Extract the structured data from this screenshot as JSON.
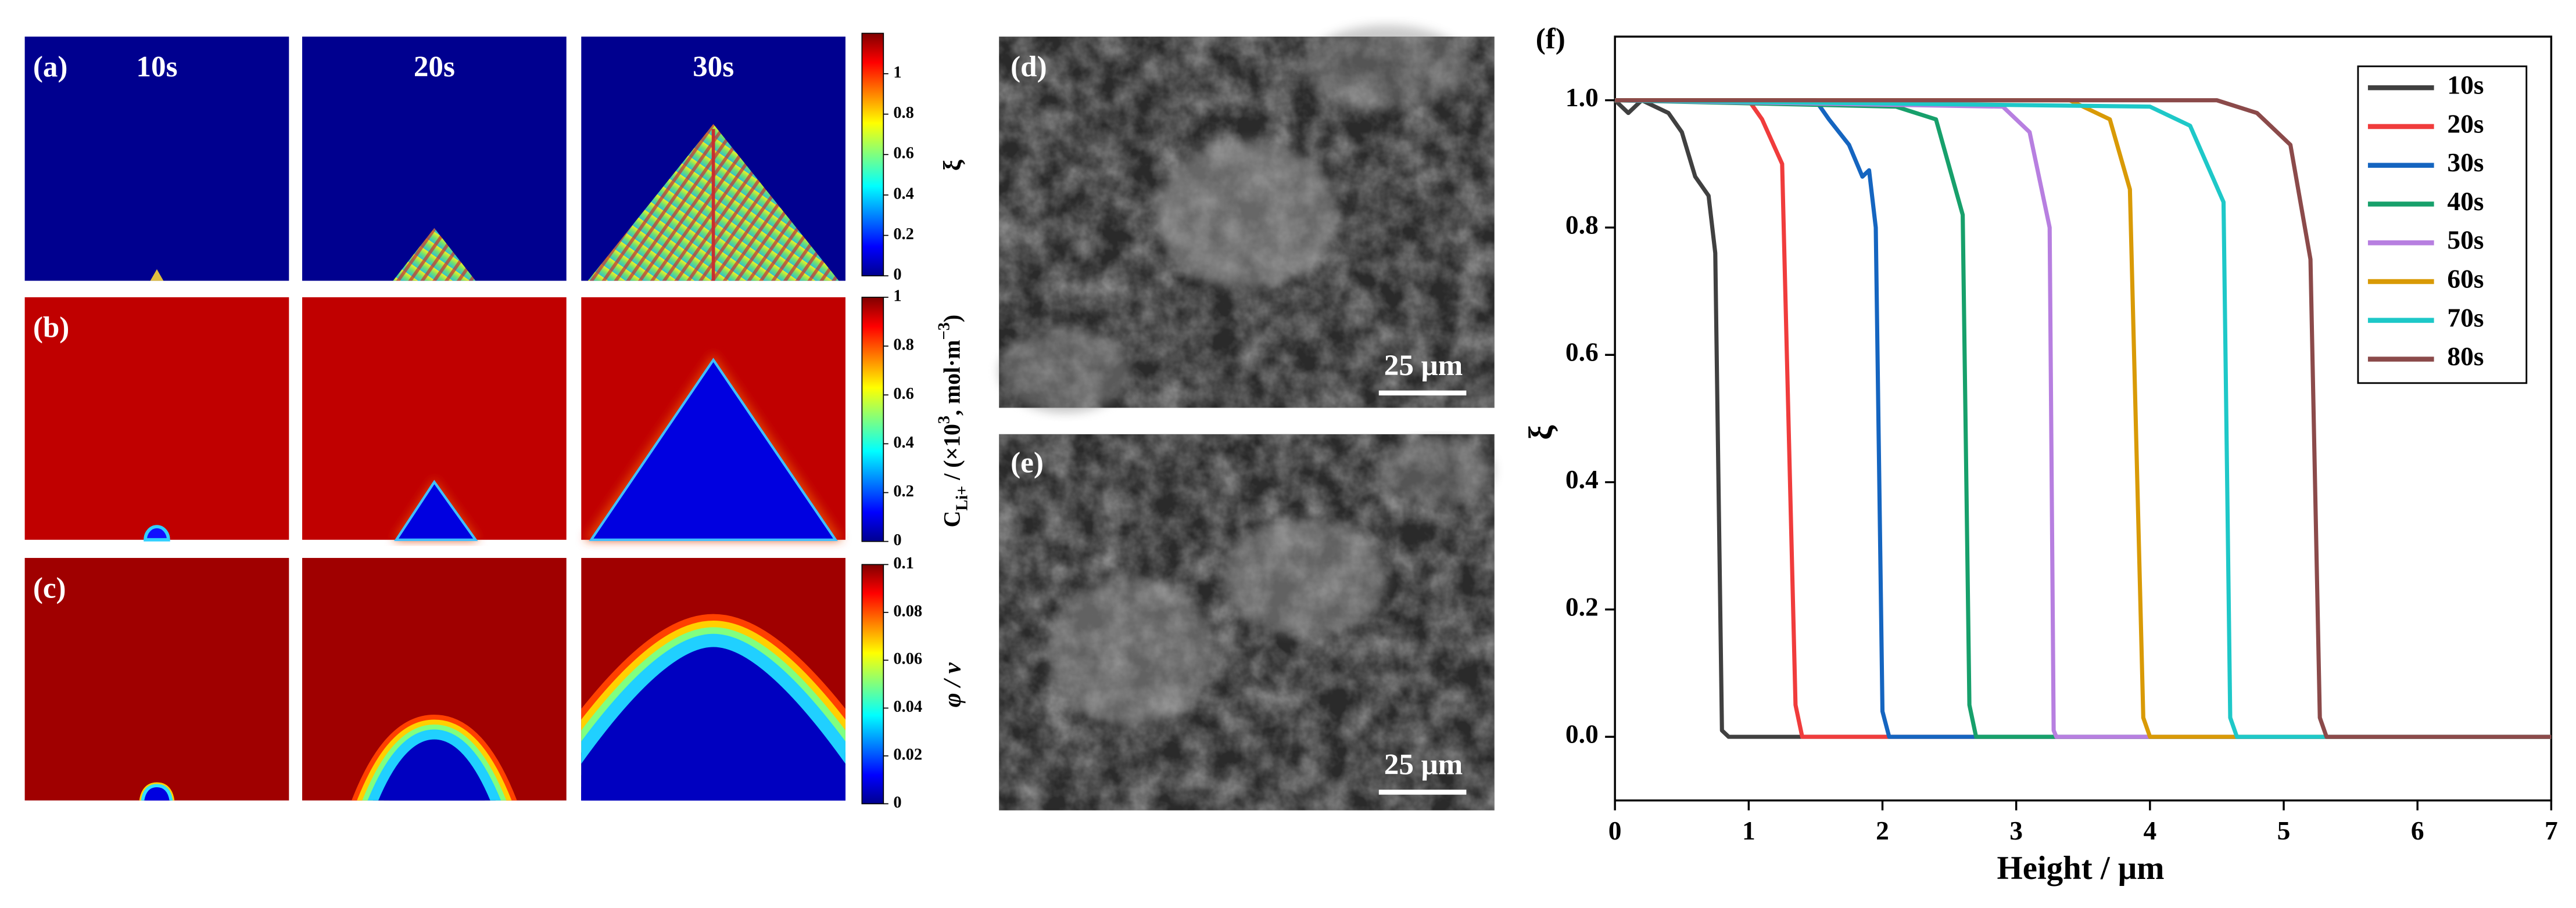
{
  "simulation": {
    "time_labels": [
      "10s",
      "20s",
      "30s"
    ],
    "rows": [
      {
        "label": "(a)",
        "colorbar": {
          "lim": [
            0,
            1.2
          ],
          "ticks": [
            0,
            0.2,
            0.4,
            0.6,
            0.8,
            1
          ],
          "title": "ξ"
        }
      },
      {
        "label": "(b)",
        "colorbar": {
          "lim": [
            0,
            1
          ],
          "ticks": [
            0,
            0.2,
            0.4,
            0.6,
            0.8,
            1
          ],
          "title_parts": [
            "C",
            "Li+",
            " / (×10",
            "3",
            ", mol·m",
            "−3",
            ")"
          ]
        }
      },
      {
        "label": "(c)",
        "colorbar": {
          "lim": [
            0,
            0.1
          ],
          "ticks": [
            0,
            0.02,
            0.04,
            0.06,
            0.08,
            0.1
          ],
          "title": "φ / v"
        }
      }
    ]
  },
  "micrographs": [
    {
      "label": "(d)",
      "scale_bar": "25 μm"
    },
    {
      "label": "(e)",
      "scale_bar": "25 μm"
    }
  ],
  "chart_data": {
    "type": "line",
    "panel_label": "(f)",
    "x_label": "Height / μm",
    "y_label": "ξ",
    "xlim": [
      0,
      7
    ],
    "ylim": [
      -0.1,
      1.1
    ],
    "xticks": [
      0,
      1,
      2,
      3,
      4,
      5,
      6,
      7
    ],
    "yticks": [
      {
        "value": 0,
        "label": "0.0"
      },
      0.2,
      0.4,
      0.6,
      0.8,
      {
        "value": 1,
        "label": "1.0"
      }
    ],
    "legend": "upper right",
    "series": [
      {
        "name": "10s",
        "color": "#404040",
        "x": [
          0,
          0.1,
          0.2,
          0.4,
          0.5,
          0.6,
          0.7,
          0.75,
          0.8,
          0.85,
          7
        ],
        "values": [
          1,
          0.98,
          1,
          0.98,
          0.95,
          0.88,
          0.85,
          0.76,
          0.01,
          0,
          0
        ]
      },
      {
        "name": "20s",
        "color": "#f03c3c",
        "x": [
          0,
          1.0,
          1.1,
          1.25,
          1.35,
          1.4,
          7
        ],
        "values": [
          1,
          1,
          0.97,
          0.9,
          0.05,
          0,
          0
        ]
      },
      {
        "name": "30s",
        "color": "#1565c0",
        "x": [
          0,
          1.5,
          1.6,
          1.75,
          1.85,
          1.9,
          1.95,
          2.0,
          2.05,
          7
        ],
        "values": [
          1,
          1,
          0.97,
          0.93,
          0.88,
          0.89,
          0.8,
          0.04,
          0,
          0
        ]
      },
      {
        "name": "40s",
        "color": "#17a06b",
        "x": [
          0,
          2.1,
          2.4,
          2.6,
          2.65,
          2.7,
          7
        ],
        "values": [
          1,
          0.99,
          0.97,
          0.82,
          0.05,
          0,
          0
        ]
      },
      {
        "name": "50s",
        "color": "#b77fe0",
        "x": [
          0,
          2.9,
          3.1,
          3.25,
          3.28,
          3.3,
          7
        ],
        "values": [
          1,
          0.99,
          0.95,
          0.8,
          0.01,
          0,
          0
        ]
      },
      {
        "name": "60s",
        "color": "#d99a06",
        "x": [
          0,
          3.4,
          3.7,
          3.85,
          3.95,
          4.0,
          7
        ],
        "values": [
          1,
          1,
          0.97,
          0.86,
          0.03,
          0,
          0
        ]
      },
      {
        "name": "70s",
        "color": "#1ec8c8",
        "x": [
          0,
          4.0,
          4.3,
          4.55,
          4.6,
          4.65,
          7
        ],
        "values": [
          1,
          0.99,
          0.96,
          0.84,
          0.03,
          0,
          0
        ]
      },
      {
        "name": "80s",
        "color": "#8b4a4a",
        "x": [
          0,
          4.5,
          4.8,
          5.05,
          5.2,
          5.27,
          5.32,
          7
        ],
        "values": [
          1,
          1,
          0.98,
          0.93,
          0.75,
          0.03,
          0,
          0
        ]
      }
    ]
  }
}
